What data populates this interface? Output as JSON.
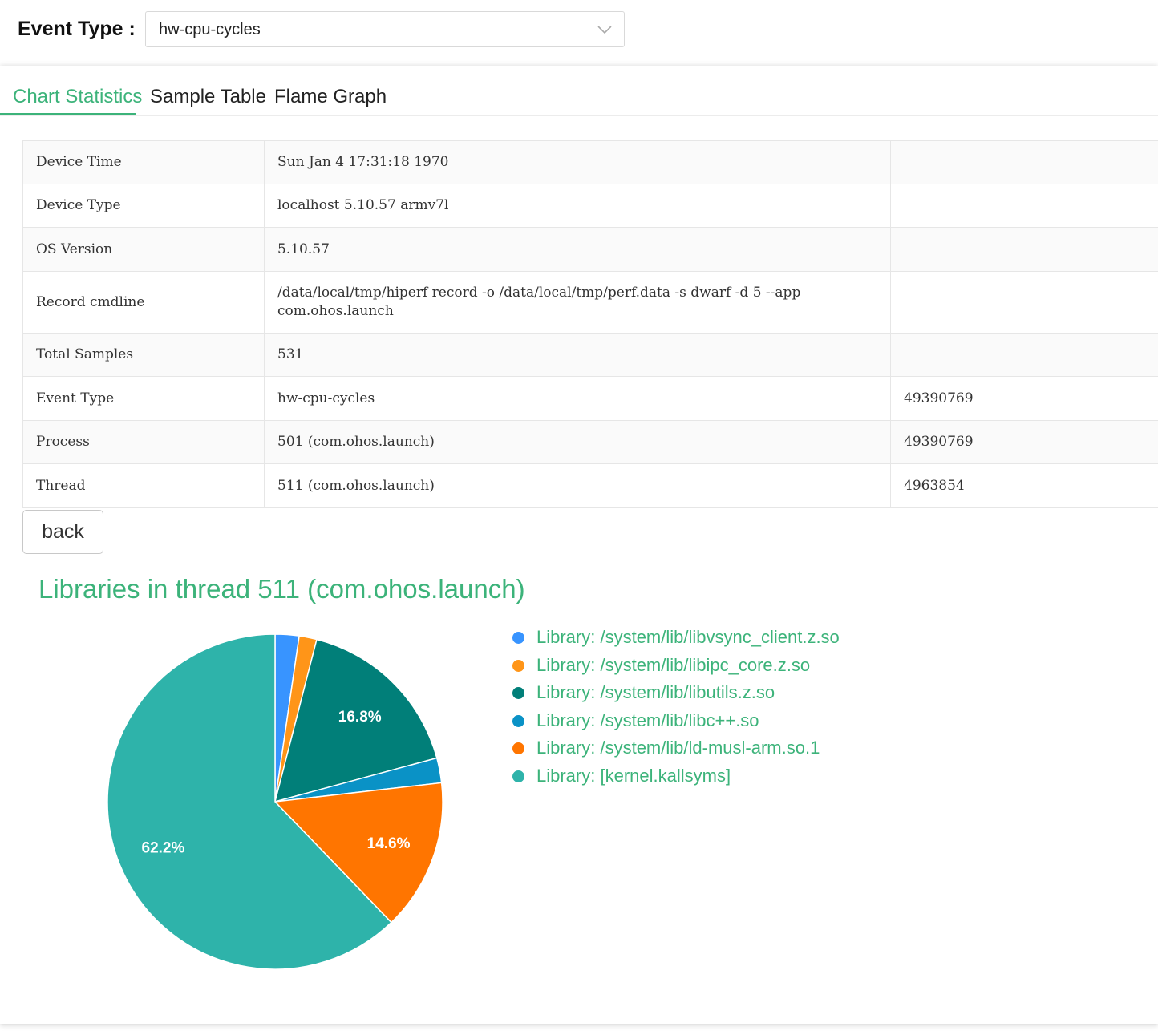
{
  "header": {
    "event_type_label": "Event Type :",
    "event_type_value": "hw-cpu-cycles"
  },
  "tabs": [
    {
      "label": "Chart Statistics",
      "active": true
    },
    {
      "label": "Sample Table",
      "active": false
    },
    {
      "label": "Flame Graph",
      "active": false
    }
  ],
  "info_table": [
    {
      "name": "Device Time",
      "value": "Sun Jan 4 17:31:18 1970",
      "extra": ""
    },
    {
      "name": "Device Type",
      "value": "localhost 5.10.57 armv7l",
      "extra": ""
    },
    {
      "name": "OS Version",
      "value": "5.10.57",
      "extra": ""
    },
    {
      "name": "Record cmdline",
      "value": "/data/local/tmp/hiperf record -o /data/local/tmp/perf.data -s dwarf -d 5 --app com.ohos.launch",
      "extra": ""
    },
    {
      "name": "Total Samples",
      "value": "531",
      "extra": ""
    },
    {
      "name": "Event Type",
      "value": "hw-cpu-cycles",
      "extra": "49390769"
    },
    {
      "name": "Process",
      "value": "501 (com.ohos.launch)",
      "extra": "49390769"
    },
    {
      "name": "Thread",
      "value": "511 (com.ohos.launch)",
      "extra": "4963854"
    }
  ],
  "back_label": "back",
  "colors": {
    "accent": "#3cb37a"
  },
  "chart_data": {
    "type": "pie",
    "title": "Libraries in thread 511 (com.ohos.launch)",
    "legend_position": "right",
    "series": [
      {
        "name": "Library: /system/lib/libvsync_client.z.so",
        "value": 2.3,
        "color": "#3894ff",
        "label": ""
      },
      {
        "name": "Library: /system/lib/libipc_core.z.so",
        "value": 1.7,
        "color": "#ff9518",
        "label": ""
      },
      {
        "name": "Library: /system/lib/libutils.z.so",
        "value": 16.8,
        "color": "#017f79",
        "label": "16.8%"
      },
      {
        "name": "Library: /system/lib/libc++.so",
        "value": 2.4,
        "color": "#0a92c6",
        "label": ""
      },
      {
        "name": "Library: /system/lib/ld-musl-arm.so.1",
        "value": 14.6,
        "color": "#ff7500",
        "label": "14.6%"
      },
      {
        "name": "Library: [kernel.kallsyms]",
        "value": 62.2,
        "color": "#2eb3aa",
        "label": "62.2%"
      }
    ]
  }
}
